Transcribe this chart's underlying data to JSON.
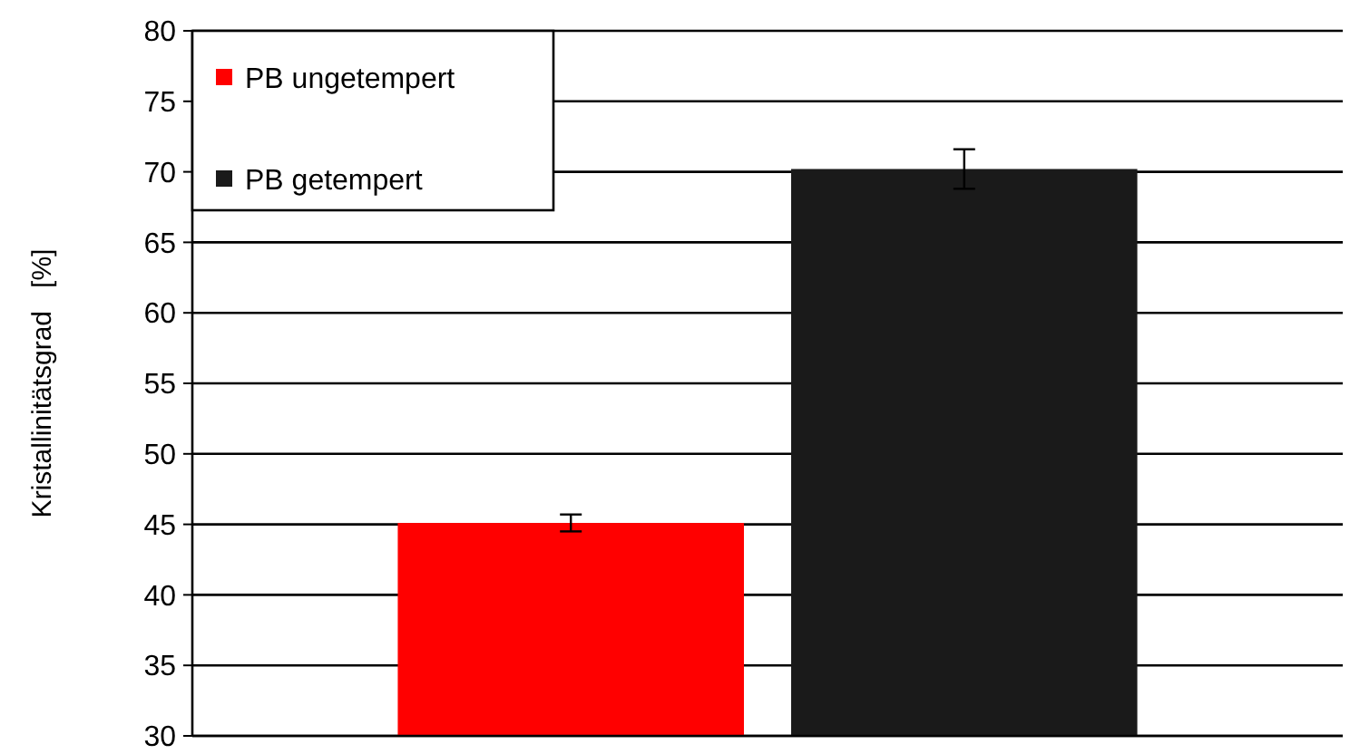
{
  "chart_data": {
    "type": "bar",
    "ylabel": "Kristallinitätsgrad   [%]",
    "categories": [
      null
    ],
    "series": [
      {
        "name": "PB ungetempert",
        "color": "#ff0000",
        "values": [
          45.1
        ],
        "errors": [
          0.6
        ]
      },
      {
        "name": "PB getempert",
        "color": "#1a1a1a",
        "values": [
          70.2
        ],
        "errors": [
          1.4
        ]
      }
    ],
    "ylim": [
      30,
      80
    ],
    "yticks": [
      30,
      35,
      40,
      45,
      50,
      55,
      60,
      65,
      70,
      75,
      80
    ],
    "grid": "y",
    "legend": "top left"
  }
}
